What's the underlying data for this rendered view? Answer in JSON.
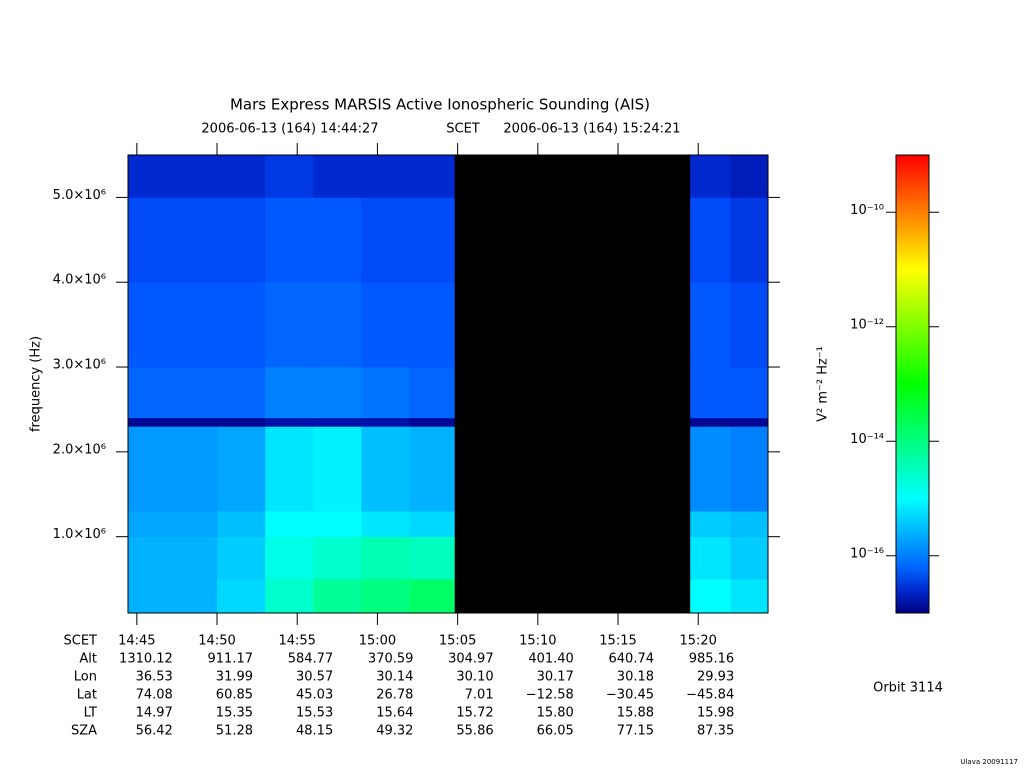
{
  "chart_data": {
    "type": "spectrogram",
    "title": "Mars Express MARSIS Active Ionospheric Sounding (AIS)",
    "start_time": "2006-06-13 (164) 14:44:27",
    "time_system": "SCET",
    "end_time": "2006-06-13 (164) 15:24:21",
    "ylabel": "frequency (Hz)",
    "xlim": [
      884.45,
      924.35
    ],
    "xticks": [
      {
        "value": 885,
        "label": "14:45"
      },
      {
        "value": 890,
        "label": "14:50"
      },
      {
        "value": 895,
        "label": "14:55"
      },
      {
        "value": 900,
        "label": "15:00"
      },
      {
        "value": 905,
        "label": "15:05"
      },
      {
        "value": 910,
        "label": "15:10"
      },
      {
        "value": 915,
        "label": "15:15"
      },
      {
        "value": 920,
        "label": "15:20"
      }
    ],
    "ylim": [
      100000,
      5500000
    ],
    "yticks": [
      {
        "value": 1000000,
        "label": "1.0×10⁶"
      },
      {
        "value": 2000000,
        "label": "2.0×10⁶"
      },
      {
        "value": 3000000,
        "label": "3.0×10⁶"
      },
      {
        "value": 4000000,
        "label": "4.0×10⁶"
      },
      {
        "value": 5000000,
        "label": "5.0×10⁶"
      }
    ],
    "time_edges": [
      884.45,
      887,
      890,
      893,
      896,
      899,
      902,
      904.8,
      919.5,
      922,
      924.35
    ],
    "freq_edges": [
      100000,
      500000,
      1000000,
      1300000,
      2300000,
      2400000,
      3000000,
      4000000,
      5000000,
      5500000
    ],
    "z": [
      [
        -15.6,
        -15.6,
        -15.3,
        -14.6,
        -14.2,
        -14.0,
        -13.8,
        null,
        -15.0,
        -15.2
      ],
      [
        -15.6,
        -15.6,
        -15.4,
        -14.8,
        -14.6,
        -14.4,
        -14.5,
        null,
        -15.2,
        -15.4
      ],
      [
        -15.7,
        -15.7,
        -15.5,
        -15.0,
        -15.0,
        -15.2,
        -15.3,
        null,
        -15.4,
        -15.5
      ],
      [
        -15.8,
        -15.8,
        -15.7,
        -15.2,
        -15.1,
        -15.5,
        -15.6,
        null,
        -15.9,
        -16.0
      ],
      [
        -16.9,
        -16.9,
        -16.9,
        -16.8,
        -16.8,
        -16.8,
        -16.9,
        null,
        -16.9,
        -16.9
      ],
      [
        -16.2,
        -16.2,
        -16.2,
        -16.0,
        -16.0,
        -16.1,
        -16.2,
        null,
        -16.3,
        -16.3
      ],
      [
        -16.3,
        -16.3,
        -16.3,
        -16.2,
        -16.2,
        -16.3,
        -16.3,
        null,
        -16.3,
        -16.4
      ],
      [
        -16.4,
        -16.4,
        -16.4,
        -16.3,
        -16.3,
        -16.4,
        -16.4,
        null,
        -16.4,
        -16.5
      ],
      [
        -16.6,
        -16.6,
        -16.6,
        -16.5,
        -16.6,
        -16.6,
        -16.6,
        null,
        -16.6,
        -16.7
      ]
    ],
    "colorbar": {
      "label": "V² m⁻² Hz⁻¹",
      "clim": [
        -17,
        -9
      ],
      "ticks": [
        {
          "value": -10,
          "label": "10⁻¹⁰"
        },
        {
          "value": -12,
          "label": "10⁻¹²"
        },
        {
          "value": -14,
          "label": "10⁻¹⁴"
        },
        {
          "value": -16,
          "label": "10⁻¹⁶"
        }
      ]
    },
    "ephemeris": {
      "time_label": "SCET",
      "rows": [
        {
          "name": "Alt",
          "values": [
            "1310.12",
            "911.17",
            "584.77",
            "370.59",
            "304.97",
            "401.40",
            "640.74",
            "985.16"
          ]
        },
        {
          "name": "Lon",
          "values": [
            "36.53",
            "31.99",
            "30.57",
            "30.14",
            "30.10",
            "30.17",
            "30.18",
            "29.93"
          ]
        },
        {
          "name": "Lat",
          "values": [
            "74.08",
            "60.85",
            "45.03",
            "26.78",
            "7.01",
            "−12.58",
            "−30.45",
            "−45.84"
          ]
        },
        {
          "name": "LT",
          "values": [
            "14.97",
            "15.35",
            "15.53",
            "15.64",
            "15.72",
            "15.80",
            "15.88",
            "15.98"
          ]
        },
        {
          "name": "SZA",
          "values": [
            "56.42",
            "51.28",
            "48.15",
            "49.32",
            "55.86",
            "66.05",
            "77.15",
            "87.35"
          ]
        }
      ]
    },
    "orbit": "Orbit 3114",
    "footer": "Ulava 20091117"
  }
}
